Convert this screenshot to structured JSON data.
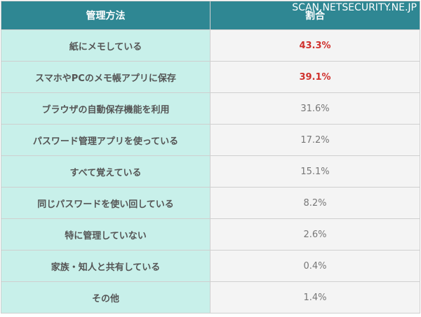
{
  "watermark": "SCAN.NETSECURITY.NE.JP",
  "colors": {
    "header_bg": "#2f8793",
    "method_cell_bg": "#c8f0ea",
    "ratio_cell_bg": "#f4f4f4",
    "highlight": "#d0312d"
  },
  "chart_data": {
    "type": "table",
    "columns": [
      "管理方法",
      "割合"
    ],
    "rows": [
      {
        "method": "紙にメモしている",
        "ratio": "43.3%",
        "value": 43.3,
        "highlight": true
      },
      {
        "method": "スマホやPCのメモ帳アプリに保存",
        "ratio": "39.1%",
        "value": 39.1,
        "highlight": true
      },
      {
        "method": "ブラウザの自動保存機能を利用",
        "ratio": "31.6%",
        "value": 31.6,
        "highlight": false
      },
      {
        "method": "パスワード管理アプリを使っている",
        "ratio": "17.2%",
        "value": 17.2,
        "highlight": false
      },
      {
        "method": "すべて覚えている",
        "ratio": "15.1%",
        "value": 15.1,
        "highlight": false
      },
      {
        "method": "同じパスワードを使い回している",
        "ratio": "8.2%",
        "value": 8.2,
        "highlight": false
      },
      {
        "method": "特に管理していない",
        "ratio": "2.6%",
        "value": 2.6,
        "highlight": false
      },
      {
        "method": "家族・知人と共有している",
        "ratio": "0.4%",
        "value": 0.4,
        "highlight": false
      },
      {
        "method": "その他",
        "ratio": "1.4%",
        "value": 1.4,
        "highlight": false
      }
    ]
  }
}
